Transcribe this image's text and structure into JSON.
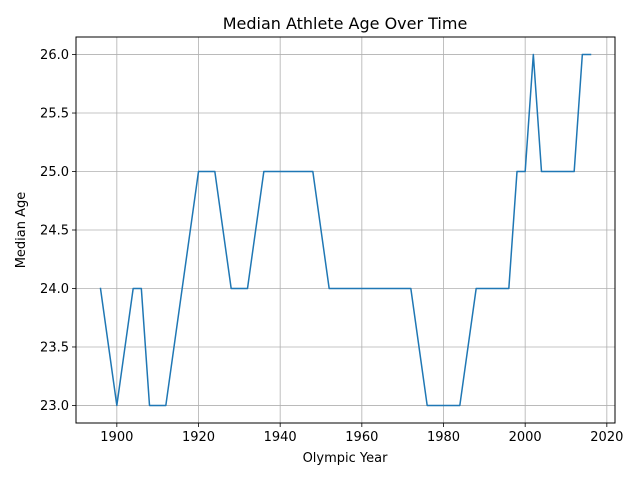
{
  "chart_data": {
    "type": "line",
    "title": "Median Athlete Age Over Time",
    "xlabel": "Olympic Year",
    "ylabel": "Median Age",
    "xlim": [
      1890,
      2022
    ],
    "ylim": [
      22.85,
      26.15
    ],
    "x_ticks": [
      1900,
      1920,
      1940,
      1960,
      1980,
      2000,
      2020
    ],
    "y_ticks": [
      "23.0",
      "23.5",
      "24.0",
      "24.5",
      "25.0",
      "25.5",
      "26.0"
    ],
    "grid": true,
    "series": [
      {
        "color": "#1f77b4",
        "x": [
          1896,
          1900,
          1904,
          1906,
          1908,
          1912,
          1920,
          1924,
          1928,
          1932,
          1936,
          1948,
          1952,
          1956,
          1960,
          1964,
          1968,
          1972,
          1976,
          1980,
          1984,
          1988,
          1992,
          1994,
          1996,
          1998,
          2000,
          2002,
          2004,
          2006,
          2008,
          2010,
          2012,
          2014,
          2016
        ],
        "y": [
          24,
          23,
          24,
          24,
          23,
          23,
          25,
          25,
          24,
          24,
          25,
          25,
          24,
          24,
          24,
          24,
          24,
          24,
          23,
          23,
          23,
          24,
          24,
          24,
          24,
          25,
          25,
          26,
          25,
          25,
          25,
          25,
          25,
          26,
          26
        ]
      }
    ]
  }
}
